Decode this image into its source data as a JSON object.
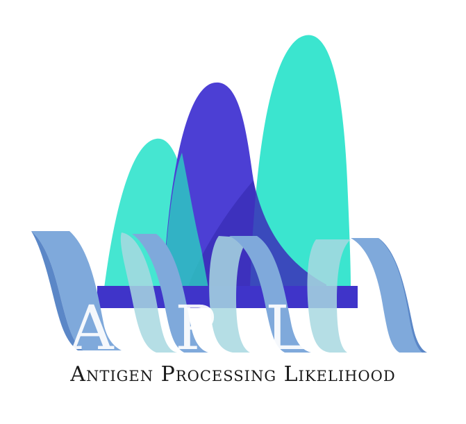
{
  "logo": {
    "letters": [
      "A",
      "P",
      "L"
    ],
    "tagline": "Antigen Processing Likelihood"
  },
  "colors": {
    "teal": "#3be5cf",
    "indigo": "#4c3fd4",
    "dark_indigo": "#3b2fb8",
    "ribbon_light": "#7fa9db",
    "ribbon_dark": "#5b87c7",
    "ribbon_inner": "#a8d8e0",
    "text": "#1a1a1a"
  }
}
